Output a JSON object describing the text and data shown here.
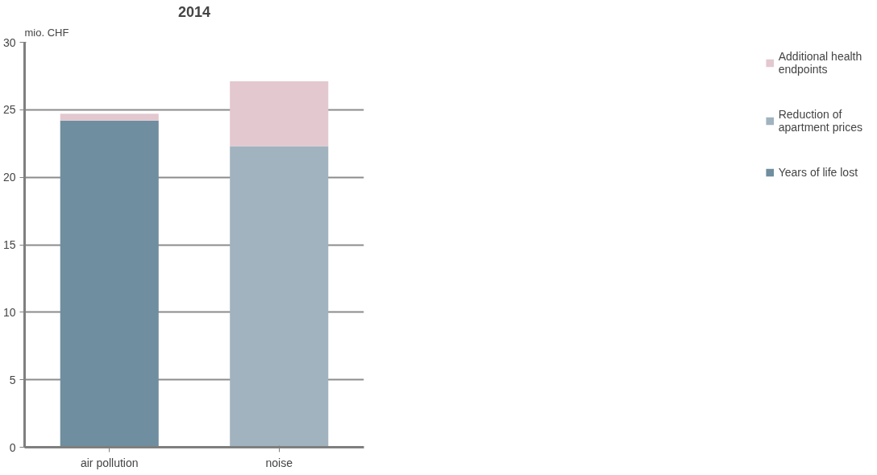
{
  "chart_data": {
    "type": "bar",
    "stacked": true,
    "title": "2014",
    "ylabel": "mio. CHF",
    "categories": [
      "air pollution",
      "noise"
    ],
    "series": [
      {
        "name": "Years of life lost",
        "color": "#6f8e9f",
        "values": [
          24.2,
          0
        ]
      },
      {
        "name": "Reduction of apartment prices",
        "color": "#a0b3bf",
        "values": [
          0,
          22.3
        ]
      },
      {
        "name": "Additional health endpoints",
        "color": "#e3c8cf",
        "values": [
          0.5,
          4.8
        ]
      }
    ],
    "ylim": [
      0,
      30
    ],
    "yticks": [
      0,
      5,
      10,
      15,
      20,
      25,
      30
    ],
    "grid": "y",
    "legend": "right"
  }
}
